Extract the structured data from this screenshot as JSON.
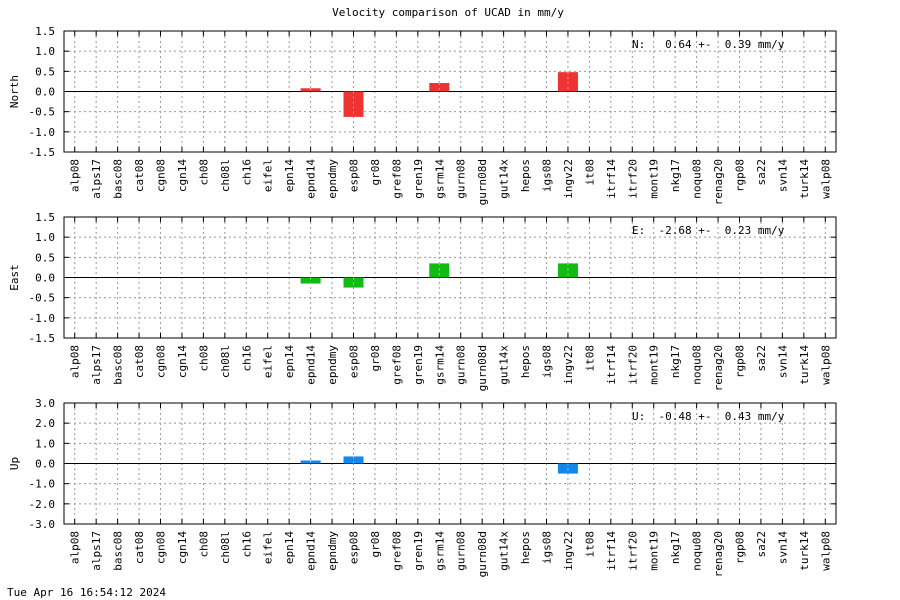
{
  "title": "Velocity comparison of UCAD in mm/y",
  "footer": "Tue Apr 16 16:54:12 2024",
  "chart_data": {
    "type": "bar",
    "categories": [
      "alp08",
      "alps17",
      "basc08",
      "cat08",
      "cgn08",
      "cgn14",
      "ch08",
      "ch08l",
      "ch16",
      "eifel",
      "epn14",
      "epnd14",
      "epndmy",
      "esp08",
      "gr08",
      "gref08",
      "gren19",
      "gsrm14",
      "gurn08",
      "gurn08d",
      "gut14x",
      "hepos",
      "igs08",
      "ingv22",
      "it08",
      "itrf14",
      "itrf20",
      "mont19",
      "nkg17",
      "noqu08",
      "renag20",
      "rgp08",
      "sa22",
      "svn14",
      "turk14",
      "walp08"
    ],
    "panels": [
      {
        "ylabel": "North",
        "ylim": [
          -1.5,
          1.5
        ],
        "ticks": [
          "1.5",
          "1.0",
          "0.5",
          "0.0",
          "-0.5",
          "-1.0",
          "-1.5"
        ],
        "tick_values": [
          1.5,
          1.0,
          0.5,
          0.0,
          -0.5,
          -1.0,
          -1.5
        ],
        "color": "#ee3333",
        "annotation": "N:   0.64 +-  0.39 mm/y",
        "values": {
          "epnd14": 0.08,
          "esp08": -0.63,
          "gsrm14": 0.21,
          "ingv22": 0.48
        }
      },
      {
        "ylabel": "East",
        "ylim": [
          -1.5,
          1.5
        ],
        "ticks": [
          "1.5",
          "1.0",
          "0.5",
          "0.0",
          "-0.5",
          "-1.0",
          "-1.5"
        ],
        "tick_values": [
          1.5,
          1.0,
          0.5,
          0.0,
          -0.5,
          -1.0,
          -1.5
        ],
        "color": "#11bb11",
        "annotation": "E:  -2.68 +-  0.23 mm/y",
        "values": {
          "epnd14": -0.15,
          "esp08": -0.25,
          "gsrm14": 0.35,
          "ingv22": 0.35
        }
      },
      {
        "ylabel": "Up",
        "ylim": [
          -3.0,
          3.0
        ],
        "ticks": [
          "3.0",
          "2.0",
          "1.0",
          "0.0",
          "-1.0",
          "-2.0",
          "-3.0"
        ],
        "tick_values": [
          3.0,
          2.0,
          1.0,
          0.0,
          -1.0,
          -2.0,
          -3.0
        ],
        "color": "#1188ee",
        "annotation": "U:  -0.48 +-  0.43 mm/y",
        "values": {
          "epnd14": 0.15,
          "esp08": 0.35,
          "ingv22": -0.5
        }
      }
    ],
    "grid": true
  }
}
